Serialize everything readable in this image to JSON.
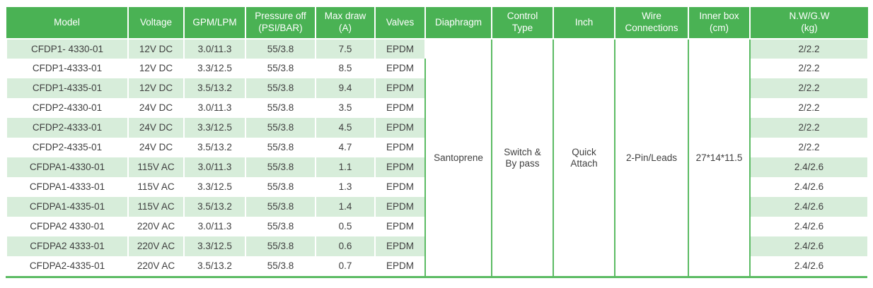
{
  "table": {
    "headers": [
      "Model",
      "Voltage",
      "GPM/LPM",
      "Pressure off\n(PSI/BAR)",
      "Max draw\n(A)",
      "Valves",
      "Diaphragm",
      "Control\nType",
      "Inch",
      "Wire\nConnections",
      "Inner box\n(cm)",
      "N.W/G.W\n(kg)"
    ],
    "rows": [
      {
        "model": "CFDP1- 4330-01",
        "voltage": "12V DC",
        "gpm_lpm": "3.0/11.3",
        "pressure_off": "55/3.8",
        "max_draw": "7.5",
        "valves": "EPDM",
        "nw_gw": "2/2.2"
      },
      {
        "model": "CFDP1-4333-01",
        "voltage": "12V DC",
        "gpm_lpm": "3.3/12.5",
        "pressure_off": "55/3.8",
        "max_draw": "8.5",
        "valves": "EPDM",
        "nw_gw": "2/2.2"
      },
      {
        "model": "CFDP1-4335-01",
        "voltage": "12V DC",
        "gpm_lpm": "3.5/13.2",
        "pressure_off": "55/3.8",
        "max_draw": "9.4",
        "valves": "EPDM",
        "nw_gw": "2/2.2"
      },
      {
        "model": "CFDP2-4330-01",
        "voltage": "24V DC",
        "gpm_lpm": "3.0/11.3",
        "pressure_off": "55/3.8",
        "max_draw": "3.5",
        "valves": "EPDM",
        "nw_gw": "2/2.2"
      },
      {
        "model": "CFDP2-4333-01",
        "voltage": "24V DC",
        "gpm_lpm": "3.3/12.5",
        "pressure_off": "55/3.8",
        "max_draw": "4.5",
        "valves": "EPDM",
        "nw_gw": "2/2.2"
      },
      {
        "model": "CFDP2-4335-01",
        "voltage": "24V DC",
        "gpm_lpm": "3.5/13.2",
        "pressure_off": "55/3.8",
        "max_draw": "4.7",
        "valves": "EPDM",
        "nw_gw": "2/2.2"
      },
      {
        "model": "CFDPA1-4330-01",
        "voltage": "115V AC",
        "gpm_lpm": "3.0/11.3",
        "pressure_off": "55/3.8",
        "max_draw": "1.1",
        "valves": "EPDM",
        "nw_gw": "2.4/2.6"
      },
      {
        "model": "CFDPA1-4333-01",
        "voltage": "115V AC",
        "gpm_lpm": "3.3/12.5",
        "pressure_off": "55/3.8",
        "max_draw": "1.3",
        "valves": "EPDM",
        "nw_gw": "2.4/2.6"
      },
      {
        "model": "CFDPA1-4335-01",
        "voltage": "115V AC",
        "gpm_lpm": "3.5/13.2",
        "pressure_off": "55/3.8",
        "max_draw": "1.4",
        "valves": "EPDM",
        "nw_gw": "2.4/2.6"
      },
      {
        "model": "CFDPA2 4330-01",
        "voltage": "220V AC",
        "gpm_lpm": "3.0/11.3",
        "pressure_off": "55/3.8",
        "max_draw": "0.5",
        "valves": "EPDM",
        "nw_gw": "2.4/2.6"
      },
      {
        "model": "CFDPA2 4333-01",
        "voltage": "220V AC",
        "gpm_lpm": "3.3/12.5",
        "pressure_off": "55/3.8",
        "max_draw": "0.6",
        "valves": "EPDM",
        "nw_gw": "2.4/2.6"
      },
      {
        "model": "CFDPA2-4335-01",
        "voltage": "220V AC",
        "gpm_lpm": "3.5/13.2",
        "pressure_off": "55/3.8",
        "max_draw": "0.7",
        "valves": "EPDM",
        "nw_gw": "2.4/2.6"
      }
    ],
    "merged": {
      "diaphragm": "Santoprene",
      "control_type": "Switch &\nBy pass",
      "inch": "Quick\nAttach",
      "wire_connections": "2-Pin/Leads",
      "inner_box": "27*14*11.5"
    }
  },
  "colors": {
    "header_bg": "#4ab254",
    "row_alt_bg": "#d7edda",
    "grid_green": "#5bbb63",
    "header_text": "#ffffff",
    "body_text": "#3f3f3f"
  }
}
